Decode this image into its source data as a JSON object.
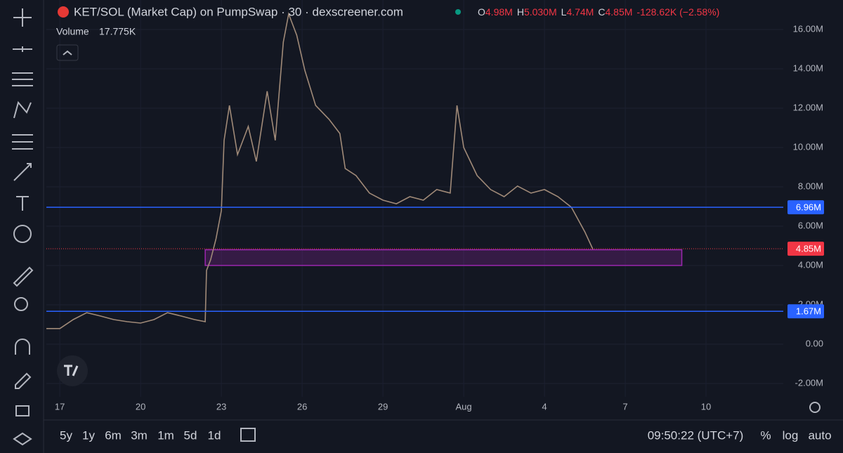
{
  "header": {
    "title": "KET/SOL (Market Cap) on PumpSwap · 30 · dexscreener.com",
    "volume_label": "Volume",
    "volume_value": "17.775K",
    "ohlc": [
      {
        "label": "O",
        "value": "4.98M"
      },
      {
        "label": "H",
        "value": "5.030M"
      },
      {
        "label": "L",
        "value": "4.74M"
      },
      {
        "label": "C",
        "value": "4.85M"
      }
    ],
    "change": "-128.62K (−2.58%)"
  },
  "chart_data": {
    "type": "line",
    "color": "#a08a78",
    "x": [
      16.5,
      17,
      17.5,
      18,
      18.5,
      19,
      19.5,
      20,
      20.5,
      21,
      21.5,
      22,
      22.4,
      22.45,
      22.6,
      22.8,
      23,
      23.1,
      23.3,
      23.6,
      24,
      24.3,
      24.7,
      25,
      25.3,
      25.5,
      25.8,
      26.1,
      26.5,
      27,
      27.4,
      27.6,
      28,
      28.5,
      29,
      29.5,
      30,
      30.5,
      31,
      31.5,
      31.75,
      32,
      32.5,
      33,
      33.5,
      34,
      34.5,
      35,
      35.5,
      36,
      36.5,
      36.8
    ],
    "values": [
      790000,
      790000,
      1250000,
      1600000,
      1430000,
      1250000,
      1140000,
      1070000,
      1250000,
      1600000,
      1430000,
      1250000,
      1140000,
      3750000,
      4290000,
      5360000,
      6790000,
      10360000,
      12140000,
      9640000,
      11070000,
      9290000,
      12860000,
      10360000,
      15360000,
      16790000,
      15710000,
      13930000,
      12140000,
      11430000,
      10710000,
      8930000,
      8570000,
      7680000,
      7320000,
      7140000,
      7500000,
      7320000,
      7860000,
      7680000,
      12140000,
      10000000,
      8570000,
      7860000,
      7500000,
      8040000,
      7680000,
      7860000,
      7500000,
      6960000,
      5710000,
      4820000
    ],
    "xlim": [
      16.5,
      43.87
    ],
    "xticks": [
      17,
      20,
      23,
      26,
      29,
      {
        "value": 32,
        "label": "Aug"
      },
      {
        "value": 35,
        "label": "4"
      },
      {
        "value": 38,
        "label": "7"
      },
      {
        "value": 41,
        "label": "10"
      }
    ],
    "ylim": [
      -2680000,
      17500000
    ],
    "yticks": [
      {
        "value": -2000000,
        "label": "-2.00M"
      },
      {
        "value": 0,
        "label": "0.00"
      },
      {
        "value": 2000000,
        "label": "2.00M"
      },
      {
        "value": 4000000,
        "label": "4.00M"
      },
      {
        "value": 6000000,
        "label": "6.00M"
      },
      {
        "value": 8000000,
        "label": "8.00M"
      },
      {
        "value": 10000000,
        "label": "10.00M"
      },
      {
        "value": 12000000,
        "label": "12.00M"
      },
      {
        "value": 14000000,
        "label": "14.00M"
      },
      {
        "value": 16000000,
        "label": "16.00M"
      }
    ],
    "grid": true,
    "price_lines": [
      {
        "value": 6960000,
        "label": "6.96M",
        "color": "#2962ff"
      },
      {
        "value": 1670000,
        "label": "1.67M",
        "color": "#2962ff"
      },
      {
        "value": 4850000,
        "label": "4.85M",
        "color": "#f23645"
      }
    ],
    "zone": {
      "x": [
        22.4,
        40.1
      ],
      "y": [
        4000000,
        4800000
      ],
      "color": "#9c27b0"
    }
  },
  "toolbar": {
    "ranges": [
      "5y",
      "1y",
      "6m",
      "3m",
      "1m",
      "5d",
      "1d"
    ],
    "clock": "09:50:22 (UTC+7)",
    "options": [
      "%",
      "log",
      "auto"
    ]
  }
}
